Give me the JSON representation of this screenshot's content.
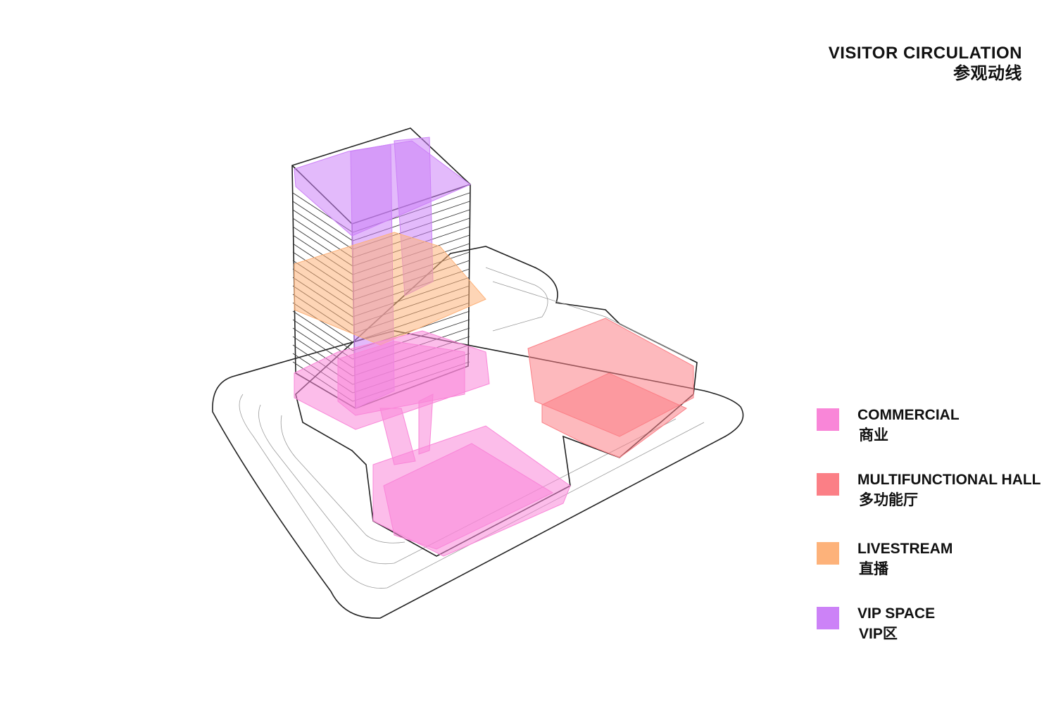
{
  "header": {
    "title": "VISITOR CIRCULATION",
    "subtitle": "参观动线"
  },
  "legend": [
    {
      "label": "COMMERCIAL",
      "label_zh": "商业",
      "color": "#f986d8"
    },
    {
      "label": "MULTIFUNCTIONAL HALL",
      "label_zh": "多功能厅",
      "color": "#fb7f86"
    },
    {
      "label": "LIVESTREAM",
      "label_zh": "直播",
      "color": "#fdb27a"
    },
    {
      "label": "VIP SPACE",
      "label_zh": "VIP区",
      "color": "#cc82f7"
    }
  ]
}
